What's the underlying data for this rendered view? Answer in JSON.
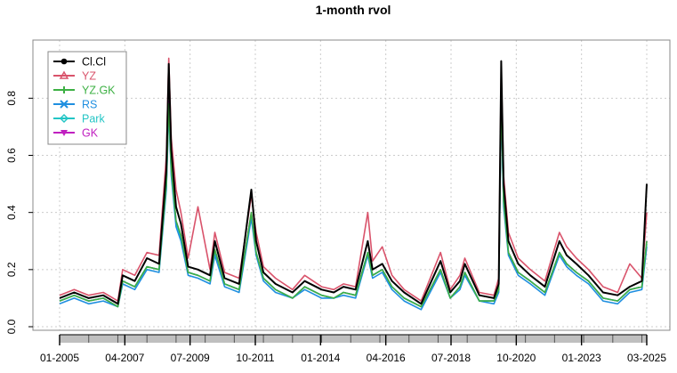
{
  "chart_data": {
    "type": "line",
    "title": "1-month rvol",
    "xlabel": "",
    "ylabel": "",
    "ylim": [
      0,
      0.96
    ],
    "yticks": [
      0.0,
      0.2,
      0.4,
      0.6,
      0.8
    ],
    "ytick_labels": [
      "0.0",
      "0.2",
      "0.4",
      "0.6",
      "0.8"
    ],
    "x_range": [
      "2005-01",
      "2025-03"
    ],
    "x_tick_labels": [
      "01-2005",
      "04-2007",
      "07-2009",
      "10-2011",
      "01-2014",
      "04-2016",
      "07-2018",
      "10-2020",
      "01-2023",
      "03-2025"
    ],
    "grid": true,
    "legend_position": "top-left",
    "x": [
      "2005-01",
      "2005-07",
      "2006-01",
      "2006-07",
      "2007-01",
      "2007-03",
      "2007-08",
      "2008-01",
      "2008-06",
      "2008-09",
      "2008-10",
      "2008-11",
      "2009-01",
      "2009-03",
      "2009-06",
      "2009-10",
      "2010-03",
      "2010-05",
      "2010-09",
      "2011-03",
      "2011-08",
      "2011-10",
      "2012-01",
      "2012-06",
      "2013-01",
      "2013-06",
      "2014-01",
      "2014-06",
      "2014-10",
      "2015-03",
      "2015-08",
      "2015-10",
      "2016-02",
      "2016-06",
      "2016-11",
      "2017-06",
      "2018-02",
      "2018-06",
      "2018-10",
      "2018-12",
      "2019-06",
      "2019-12",
      "2020-02",
      "2020-03",
      "2020-04",
      "2020-06",
      "2020-10",
      "2021-03",
      "2021-09",
      "2022-03",
      "2022-06",
      "2022-10",
      "2023-03",
      "2023-09",
      "2024-03",
      "2024-08",
      "2025-01",
      "2025-03"
    ],
    "series": [
      {
        "name": "Cl.Cl",
        "color": "#000000",
        "marker": "circle",
        "values": [
          0.1,
          0.12,
          0.1,
          0.11,
          0.08,
          0.18,
          0.16,
          0.24,
          0.22,
          0.55,
          0.92,
          0.62,
          0.42,
          0.36,
          0.21,
          0.2,
          0.18,
          0.3,
          0.17,
          0.15,
          0.48,
          0.3,
          0.19,
          0.15,
          0.12,
          0.16,
          0.13,
          0.12,
          0.14,
          0.13,
          0.3,
          0.2,
          0.22,
          0.16,
          0.12,
          0.08,
          0.23,
          0.12,
          0.16,
          0.22,
          0.11,
          0.1,
          0.15,
          0.93,
          0.5,
          0.3,
          0.22,
          0.18,
          0.14,
          0.3,
          0.25,
          0.22,
          0.18,
          0.12,
          0.11,
          0.14,
          0.16,
          0.5
        ]
      },
      {
        "name": "YZ",
        "color": "#d9536b",
        "marker": "triangle",
        "values": [
          0.11,
          0.13,
          0.11,
          0.12,
          0.09,
          0.2,
          0.18,
          0.26,
          0.25,
          0.6,
          0.94,
          0.66,
          0.48,
          0.4,
          0.24,
          0.42,
          0.2,
          0.33,
          0.19,
          0.17,
          0.46,
          0.33,
          0.21,
          0.17,
          0.13,
          0.18,
          0.14,
          0.13,
          0.15,
          0.14,
          0.4,
          0.23,
          0.28,
          0.18,
          0.13,
          0.09,
          0.26,
          0.13,
          0.18,
          0.24,
          0.12,
          0.11,
          0.17,
          0.9,
          0.53,
          0.33,
          0.24,
          0.2,
          0.16,
          0.33,
          0.28,
          0.24,
          0.2,
          0.14,
          0.12,
          0.22,
          0.17,
          0.4
        ]
      },
      {
        "name": "YZ.GK",
        "color": "#3cb043",
        "marker": "plus",
        "values": [
          0.09,
          0.11,
          0.09,
          0.1,
          0.07,
          0.16,
          0.14,
          0.21,
          0.2,
          0.5,
          0.78,
          0.55,
          0.37,
          0.32,
          0.19,
          0.18,
          0.16,
          0.27,
          0.15,
          0.13,
          0.4,
          0.26,
          0.17,
          0.13,
          0.1,
          0.14,
          0.11,
          0.1,
          0.12,
          0.11,
          0.26,
          0.18,
          0.2,
          0.14,
          0.1,
          0.07,
          0.2,
          0.1,
          0.14,
          0.19,
          0.09,
          0.09,
          0.13,
          0.8,
          0.44,
          0.26,
          0.19,
          0.16,
          0.12,
          0.26,
          0.22,
          0.19,
          0.16,
          0.1,
          0.09,
          0.13,
          0.14,
          0.3
        ]
      },
      {
        "name": "RS",
        "color": "#1f8fe0",
        "marker": "cross",
        "values": [
          0.08,
          0.1,
          0.08,
          0.09,
          0.07,
          0.15,
          0.13,
          0.2,
          0.19,
          0.48,
          0.76,
          0.53,
          0.35,
          0.3,
          0.18,
          0.17,
          0.15,
          0.25,
          0.14,
          0.12,
          0.38,
          0.25,
          0.16,
          0.12,
          0.1,
          0.13,
          0.1,
          0.1,
          0.11,
          0.1,
          0.25,
          0.17,
          0.19,
          0.13,
          0.09,
          0.06,
          0.19,
          0.1,
          0.13,
          0.18,
          0.09,
          0.08,
          0.12,
          0.78,
          0.42,
          0.25,
          0.18,
          0.15,
          0.11,
          0.25,
          0.21,
          0.18,
          0.15,
          0.09,
          0.08,
          0.12,
          0.13,
          0.28
        ]
      },
      {
        "name": "Park",
        "color": "#22c5c5",
        "marker": "diamond",
        "values": [
          0.09,
          0.11,
          0.09,
          0.1,
          0.07,
          0.16,
          0.14,
          0.21,
          0.2,
          0.49,
          0.77,
          0.54,
          0.36,
          0.31,
          0.19,
          0.18,
          0.16,
          0.26,
          0.15,
          0.13,
          0.39,
          0.26,
          0.17,
          0.13,
          0.1,
          0.14,
          0.11,
          0.1,
          0.12,
          0.11,
          0.26,
          0.18,
          0.2,
          0.14,
          0.1,
          0.07,
          0.2,
          0.1,
          0.14,
          0.19,
          0.09,
          0.09,
          0.13,
          0.79,
          0.43,
          0.26,
          0.19,
          0.16,
          0.12,
          0.26,
          0.22,
          0.19,
          0.16,
          0.1,
          0.09,
          0.13,
          0.14,
          0.29
        ]
      },
      {
        "name": "GK",
        "color": "#c020c0",
        "marker": "triangle-down",
        "values": [
          0.09,
          0.11,
          0.09,
          0.1,
          0.07,
          0.16,
          0.14,
          0.21,
          0.2,
          0.5,
          0.79,
          0.55,
          0.37,
          0.32,
          0.19,
          0.18,
          0.16,
          0.27,
          0.15,
          0.13,
          0.4,
          0.26,
          0.17,
          0.13,
          0.1,
          0.14,
          0.11,
          0.1,
          0.12,
          0.11,
          0.26,
          0.18,
          0.2,
          0.14,
          0.1,
          0.07,
          0.2,
          0.1,
          0.14,
          0.19,
          0.09,
          0.09,
          0.13,
          0.8,
          0.44,
          0.26,
          0.19,
          0.16,
          0.12,
          0.26,
          0.22,
          0.19,
          0.16,
          0.1,
          0.09,
          0.13,
          0.14,
          0.3
        ]
      }
    ]
  }
}
